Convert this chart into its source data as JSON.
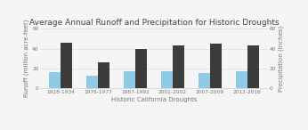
{
  "title": "Average Annual Runoff and Precipitation for Historic Droughts",
  "xlabel": "Historic California Droughts",
  "ylabel_left": "Runoff (million acre-feet)",
  "ylabel_right": "Precipitation (inches)",
  "categories": [
    "1928-1934",
    "1976-1977",
    "1987-1992",
    "2001-2002",
    "2007-2009",
    "2012-2016"
  ],
  "runoff": [
    16,
    13,
    17,
    17,
    15.5,
    17
  ],
  "precipitation": [
    46,
    26,
    40,
    43,
    45,
    43
  ],
  "bar_color_runoff": "#8fcae7",
  "bar_color_precip": "#3c3c3c",
  "background_color": "#f5f5f5",
  "ylim": [
    0,
    60
  ],
  "yticks": [
    0,
    20,
    40,
    60
  ],
  "title_fontsize": 6.5,
  "label_fontsize": 5.0,
  "tick_fontsize": 4.2,
  "legend_fontsize": 4.8
}
